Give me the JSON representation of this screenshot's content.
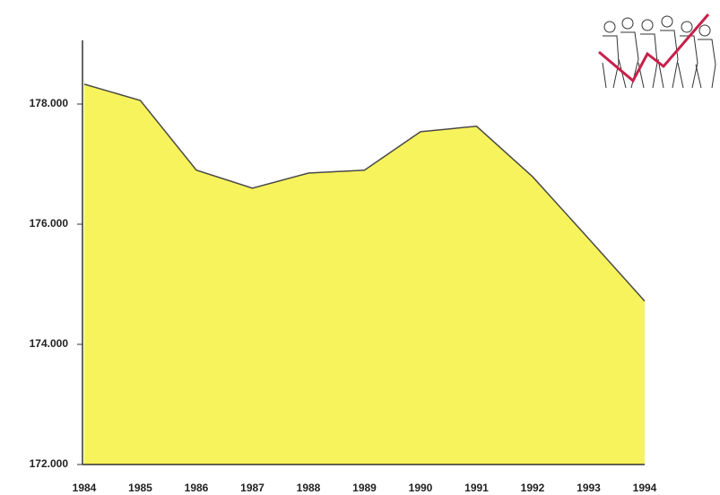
{
  "chart_data": {
    "type": "area",
    "categories": [
      "1984",
      "1985",
      "1986",
      "1987",
      "1988",
      "1989",
      "1990",
      "1991",
      "1992",
      "1993",
      "1994"
    ],
    "values": [
      178330,
      178060,
      176900,
      176600,
      176850,
      176900,
      177540,
      177630,
      176790,
      175760,
      174720
    ],
    "color": "#f7f35c",
    "line_color": "#4a4a4a",
    "ylim": [
      172000,
      179000
    ],
    "yticks": [
      {
        "value": 172000,
        "label": "172.000"
      },
      {
        "value": 174000,
        "label": "174.000"
      },
      {
        "value": 176000,
        "label": "176.000"
      },
      {
        "value": 178000,
        "label": "178.000"
      }
    ]
  }
}
